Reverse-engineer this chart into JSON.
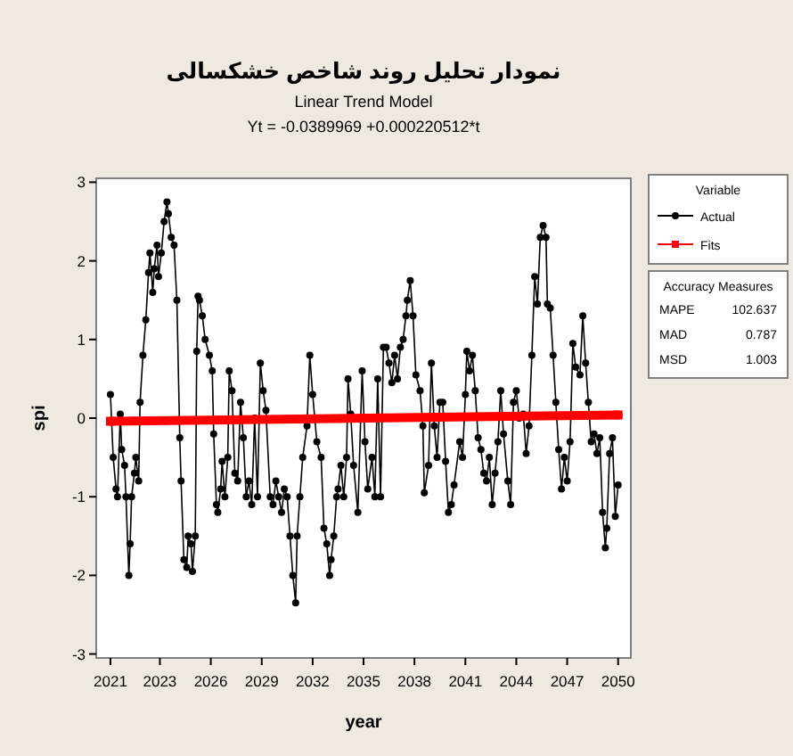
{
  "chart_data": {
    "type": "line",
    "title": "نمودار تحلیل روند شاخص خشکسالی",
    "subtitle": "Linear Trend Model",
    "annotations": [
      "Yt = -0.0389969 +0.000220512*t",
      "Accuracy Measures",
      "MAPE",
      "102.637",
      "MAD",
      "0.787",
      "MSD",
      "1.003"
    ],
    "xlabel": "year",
    "ylabel": "spi",
    "legend_title": "Variable",
    "legend": "right",
    "xlim": [
      "2020-03",
      "2051-09"
    ],
    "ylim": [
      -3.05,
      3.05
    ],
    "xticks": [
      {
        "value": "2021-01",
        "label": "2021"
      },
      {
        "value": "2023-12",
        "label": "2023"
      },
      {
        "value": "2026-12",
        "label": "2026"
      },
      {
        "value": "2029-12",
        "label": "2029"
      },
      {
        "value": "2032-12",
        "label": "2032"
      },
      {
        "value": "2035-12",
        "label": "2035"
      },
      {
        "value": "2038-12",
        "label": "2038"
      },
      {
        "value": "2041-12",
        "label": "2041"
      },
      {
        "value": "2044-12",
        "label": "2044"
      },
      {
        "value": "2047-12",
        "label": "2047"
      },
      {
        "value": "2050-12",
        "label": "2050"
      }
    ],
    "yticks": [
      -3,
      -2,
      -1,
      0,
      1,
      2,
      3
    ],
    "series": [
      {
        "name": "Actual",
        "color": "#000000",
        "marker": "circle",
        "x": [
          "2021-01",
          "2021-03",
          "2021-05",
          "2021-06",
          "2021-08",
          "2021-09",
          "2021-11",
          "2021-12",
          "2022-02",
          "2022-03",
          "2022-04",
          "2022-06",
          "2022-07",
          "2022-09",
          "2022-10",
          "2022-12",
          "2023-02",
          "2023-04",
          "2023-05",
          "2023-07",
          "2023-08",
          "2023-10",
          "2023-11",
          "2024-01",
          "2024-03",
          "2024-05",
          "2024-06",
          "2024-08",
          "2024-10",
          "2024-12",
          "2025-02",
          "2025-03",
          "2025-05",
          "2025-07",
          "2025-08",
          "2025-10",
          "2025-11",
          "2026-01",
          "2026-02",
          "2026-03",
          "2026-04",
          "2026-06",
          "2026-08",
          "2026-11",
          "2027-01",
          "2027-02",
          "2027-04",
          "2027-05",
          "2027-07",
          "2027-08",
          "2027-10",
          "2027-12",
          "2028-01",
          "2028-03",
          "2028-05",
          "2028-07",
          "2028-09",
          "2028-11",
          "2029-01",
          "2029-03",
          "2029-05",
          "2029-07",
          "2029-09",
          "2029-11",
          "2030-01",
          "2030-03",
          "2030-06",
          "2030-08",
          "2030-10",
          "2030-12",
          "2031-02",
          "2031-04",
          "2031-06",
          "2031-08",
          "2031-10",
          "2031-12",
          "2032-01",
          "2032-03",
          "2032-05",
          "2032-08",
          "2032-10",
          "2032-12",
          "2033-03",
          "2033-06",
          "2033-08",
          "2033-10",
          "2033-12",
          "2034-01",
          "2034-03",
          "2034-05",
          "2034-06",
          "2034-08",
          "2034-10",
          "2034-12",
          "2035-01",
          "2035-03",
          "2035-05",
          "2035-08",
          "2035-11",
          "2036-01",
          "2036-03",
          "2036-06",
          "2036-08",
          "2036-10",
          "2036-12",
          "2037-02",
          "2037-04",
          "2037-06",
          "2037-08",
          "2037-10",
          "2037-12",
          "2038-02",
          "2038-04",
          "2038-06",
          "2038-07",
          "2038-09",
          "2038-11",
          "2039-01",
          "2039-04",
          "2039-06",
          "2039-07",
          "2039-10",
          "2039-12",
          "2040-02",
          "2040-04",
          "2040-06",
          "2040-08",
          "2040-10",
          "2040-12",
          "2041-02",
          "2041-04",
          "2041-08",
          "2041-10",
          "2041-12",
          "2042-01",
          "2042-03",
          "2042-05",
          "2042-07",
          "2042-09",
          "2042-11",
          "2043-01",
          "2043-03",
          "2043-05",
          "2043-07",
          "2043-09",
          "2043-11",
          "2044-01",
          "2044-03",
          "2044-06",
          "2044-08",
          "2044-10",
          "2044-12",
          "2045-02",
          "2045-05",
          "2045-07",
          "2045-09",
          "2045-11",
          "2046-01",
          "2046-03",
          "2046-05",
          "2046-07",
          "2046-09",
          "2046-10",
          "2046-12",
          "2047-02",
          "2047-04",
          "2047-06",
          "2047-08",
          "2047-10",
          "2047-12",
          "2048-02",
          "2048-04",
          "2048-06",
          "2048-09",
          "2048-11",
          "2049-01",
          "2049-03",
          "2049-05",
          "2049-07",
          "2049-09",
          "2049-11",
          "2050-01",
          "2050-03",
          "2050-04",
          "2050-06",
          "2050-08",
          "2050-10",
          "2050-12"
        ],
        "values": [
          0.3,
          -0.5,
          -0.9,
          -1.0,
          0.05,
          -0.4,
          -0.6,
          -1.0,
          -2.0,
          -1.6,
          -1.0,
          -0.7,
          -0.5,
          -0.8,
          0.2,
          0.8,
          1.25,
          1.85,
          2.1,
          1.6,
          1.9,
          2.2,
          1.8,
          2.1,
          2.5,
          2.75,
          2.6,
          2.3,
          2.2,
          1.5,
          -0.25,
          -0.8,
          -1.8,
          -1.9,
          -1.5,
          -1.6,
          -1.95,
          -1.5,
          0.85,
          1.55,
          1.5,
          1.3,
          1.0,
          0.8,
          0.6,
          -0.2,
          -1.1,
          -1.2,
          -0.9,
          -0.55,
          -1.0,
          -0.5,
          0.6,
          0.35,
          -0.7,
          -0.8,
          0.2,
          -0.25,
          -1.0,
          -0.8,
          -1.1,
          0.0,
          -1.0,
          0.7,
          0.35,
          0.1,
          -1.0,
          -1.1,
          -0.8,
          -1.0,
          -1.2,
          -0.9,
          -1.0,
          -1.5,
          -2.0,
          -2.35,
          -1.5,
          -1.0,
          -0.5,
          -0.1,
          0.8,
          0.3,
          -0.3,
          -0.5,
          -1.4,
          -1.6,
          -2.0,
          -1.8,
          -1.5,
          -1.0,
          -0.9,
          -0.6,
          -1.0,
          -0.5,
          0.5,
          0.05,
          -0.6,
          -1.2,
          0.6,
          -0.3,
          -0.9,
          -0.5,
          -1.0,
          0.5,
          -1.0,
          0.9,
          0.9,
          0.7,
          0.45,
          0.8,
          0.5,
          0.9,
          1.0,
          1.3,
          1.5,
          1.75,
          1.3,
          0.55,
          0.35,
          -0.1,
          -0.95,
          -0.6,
          0.7,
          -0.1,
          -0.5,
          0.2,
          0.2,
          -0.55,
          -1.2,
          -1.1,
          -0.85,
          -0.3,
          -0.5,
          0.3,
          0.85,
          0.6,
          0.8,
          0.35,
          -0.25,
          -0.4,
          -0.7,
          -0.8,
          -0.5,
          -1.1,
          -0.7,
          -0.3,
          0.35,
          -0.2,
          -0.8,
          -1.1,
          0.2,
          0.35,
          0.0,
          0.05,
          -0.45,
          -0.1,
          0.8,
          1.8,
          1.45,
          2.3,
          2.45,
          2.3,
          1.45,
          1.4,
          0.8,
          0.2,
          -0.4,
          -0.9,
          -0.5,
          -0.8,
          -0.3,
          0.95,
          0.65,
          0.55,
          1.3,
          0.7,
          0.2,
          -0.3,
          -0.2,
          -0.45,
          -0.25,
          -1.2,
          -1.65,
          -1.4,
          -0.45,
          -0.25,
          -1.25,
          -0.85
        ]
      },
      {
        "name": "Fits",
        "color": "#ff0000",
        "marker": "square",
        "x": [
          "2021-01",
          "2050-12"
        ],
        "values": [
          -0.04,
          0.04
        ]
      }
    ]
  }
}
